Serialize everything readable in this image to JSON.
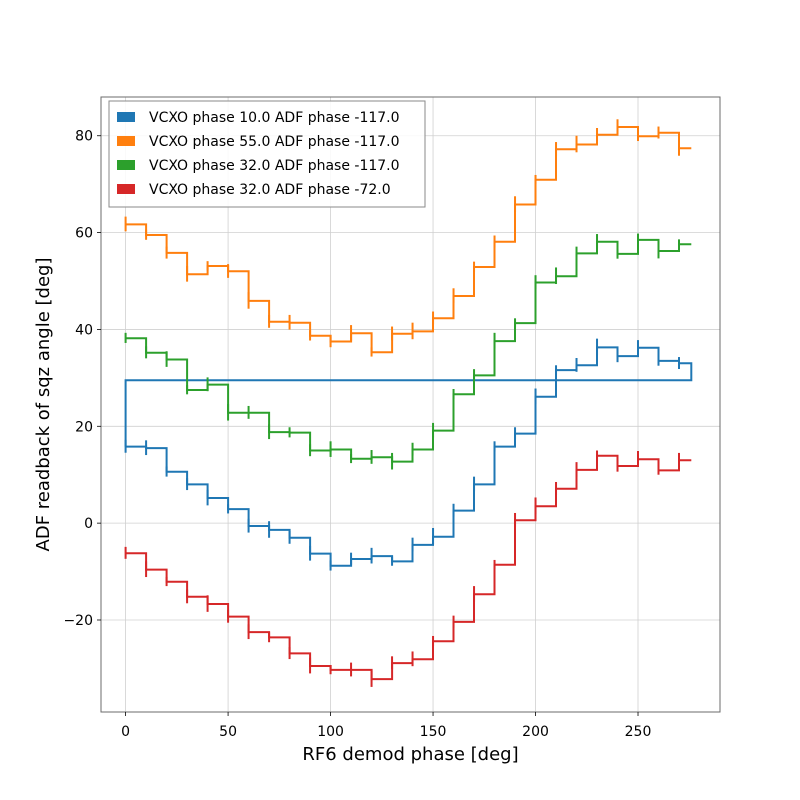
{
  "chart_data": {
    "type": "line",
    "xlabel": "RF6 demod phase [deg]",
    "ylabel": "ADF readback of sqz angle [deg]",
    "xlim": [
      -12,
      290
    ],
    "ylim": [
      -39,
      88
    ],
    "xticks": [
      0,
      50,
      100,
      150,
      200,
      250
    ],
    "yticks": [
      -20,
      0,
      20,
      40,
      60,
      80
    ],
    "xtick_labels": [
      "0",
      "50",
      "100",
      "150",
      "200",
      "250"
    ],
    "ytick_labels": [
      "−20",
      "0",
      "20",
      "40",
      "60",
      "80"
    ],
    "grid": true,
    "legend_position": "top-left",
    "series": [
      {
        "name": "VCXO phase 10.0 ADF phase -117.0",
        "color": "#1f77b4",
        "x": [
          0,
          10,
          20,
          30,
          40,
          50,
          60,
          70,
          80,
          90,
          100,
          110,
          120,
          130,
          140,
          150,
          160,
          170,
          180,
          190,
          200,
          210,
          220,
          230,
          240,
          250,
          260,
          270
        ],
        "y": [
          15.8,
          15.5,
          10.6,
          8.0,
          5.2,
          2.9,
          -0.6,
          -1.4,
          -3.0,
          -6.3,
          -8.8,
          -7.4,
          -6.8,
          -7.9,
          -4.5,
          -2.8,
          2.6,
          8.0,
          15.8,
          18.5,
          26.1,
          31.6,
          32.6,
          36.3,
          34.5,
          36.2,
          33.5,
          33.0
        ],
        "end_x": 276,
        "reset_y": 29.5
      },
      {
        "name": "VCXO phase 55.0 ADF phase -117.0",
        "color": "#ff7f0e",
        "x": [
          0,
          10,
          20,
          30,
          40,
          50,
          60,
          70,
          80,
          90,
          100,
          110,
          120,
          130,
          140,
          150,
          160,
          170,
          180,
          190,
          200,
          210,
          220,
          230,
          240,
          250,
          260,
          270
        ],
        "y": [
          61.7,
          59.5,
          55.8,
          51.4,
          53.1,
          52.0,
          45.9,
          41.6,
          41.4,
          38.7,
          37.5,
          39.2,
          35.3,
          39.1,
          39.6,
          42.3,
          46.9,
          52.9,
          58.1,
          65.8,
          70.9,
          77.2,
          78.2,
          80.2,
          81.8,
          79.9,
          80.6,
          77.4
        ]
      },
      {
        "name": "VCXO phase 32.0 ADF phase -117.0",
        "color": "#2ca02c",
        "x": [
          0,
          10,
          20,
          30,
          40,
          50,
          60,
          70,
          80,
          90,
          100,
          110,
          120,
          130,
          140,
          150,
          160,
          170,
          180,
          190,
          200,
          210,
          220,
          230,
          240,
          250,
          260,
          270
        ],
        "y": [
          38.2,
          35.2,
          33.8,
          27.5,
          28.6,
          22.8,
          22.8,
          18.8,
          18.7,
          15.0,
          15.2,
          13.3,
          13.6,
          12.7,
          15.2,
          19.1,
          26.6,
          30.5,
          37.6,
          41.3,
          49.7,
          51.0,
          55.7,
          58.1,
          55.6,
          58.5,
          56.2,
          57.6
        ]
      },
      {
        "name": "VCXO phase 32.0 ADF phase -72.0",
        "color": "#d62728",
        "x": [
          0,
          10,
          20,
          30,
          40,
          50,
          60,
          70,
          80,
          90,
          100,
          110,
          120,
          130,
          140,
          150,
          160,
          170,
          180,
          190,
          200,
          210,
          220,
          230,
          240,
          250,
          260,
          270
        ],
        "y": [
          -6.2,
          -9.6,
          -12.1,
          -15.2,
          -16.7,
          -19.3,
          -22.5,
          -23.6,
          -26.9,
          -29.5,
          -30.3,
          -30.3,
          -32.2,
          -28.9,
          -28.1,
          -24.4,
          -20.4,
          -14.7,
          -8.6,
          0.6,
          3.5,
          7.1,
          11.0,
          13.9,
          11.8,
          13.2,
          10.9,
          13.0
        ]
      }
    ]
  }
}
